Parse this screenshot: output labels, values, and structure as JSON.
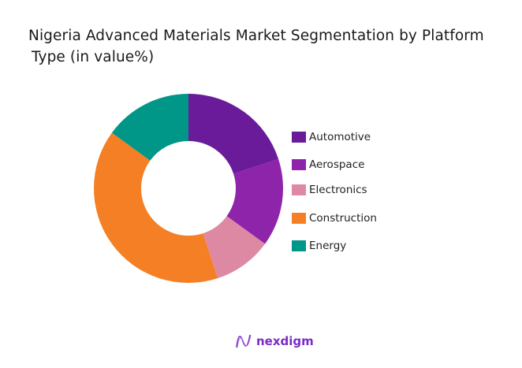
{
  "title": {
    "line1": "Nigeria Advanced Materials Market Segmentation by Platform",
    "line2": "Type (in value%)"
  },
  "chart_data": {
    "type": "pie",
    "variant": "donut",
    "title": "Nigeria Advanced Materials Market Segmentation by Platform Type (in value%)",
    "categories": [
      "Automotive",
      "Aerospace",
      "Electronics",
      "Construction",
      "Energy"
    ],
    "values": [
      20,
      15,
      10,
      40,
      15
    ],
    "colors": [
      "#6a1b9a",
      "#8e24aa",
      "#de89a3",
      "#f47f24",
      "#009688"
    ],
    "legend_position": "right",
    "start_angle": "12 o'clock, clockwise"
  },
  "legend": {
    "items": [
      {
        "label": "Automotive",
        "color": "#6a1b9a"
      },
      {
        "label": "Aerospace",
        "color": "#8e24aa"
      },
      {
        "label": "Electronics",
        "color": "#de89a3"
      },
      {
        "label": "Construction",
        "color": "#f47f24"
      },
      {
        "label": "Energy",
        "color": "#009688"
      }
    ]
  },
  "brand": {
    "name": "nexdigm",
    "logo_icon": "nexdigm-wave-logo",
    "color": "#7a2cc4"
  }
}
